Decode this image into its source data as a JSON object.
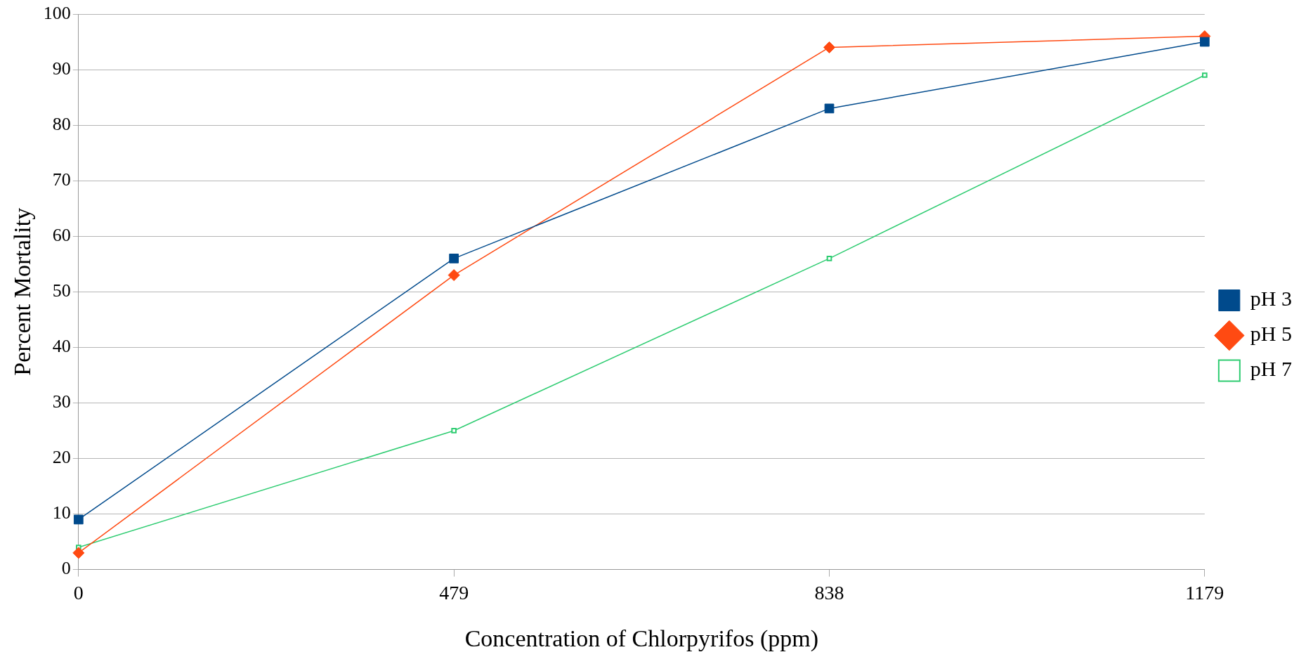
{
  "chart_data": {
    "type": "line",
    "xlabel": "Concentration of Chlorpyrifos (ppm)",
    "ylabel": "Percent Mortality",
    "categories": [
      "0",
      "479",
      "838",
      "1179"
    ],
    "series": [
      {
        "name": "pH 3",
        "color": "#004a8c",
        "values": [
          9,
          56,
          83,
          95
        ],
        "marker": "square"
      },
      {
        "name": "pH 5",
        "color": "#ff4a12",
        "values": [
          3,
          53,
          94,
          96
        ],
        "marker": "diamond"
      },
      {
        "name": "pH 7",
        "color": "#2ecc71",
        "values": [
          4,
          25,
          56,
          89
        ],
        "marker": "rect"
      }
    ],
    "ylim": [
      0,
      100
    ],
    "yticks": [
      0,
      10,
      20,
      30,
      40,
      50,
      60,
      70,
      80,
      90,
      100
    ],
    "grid": "y",
    "legend": "right",
    "line_style": "solid"
  }
}
